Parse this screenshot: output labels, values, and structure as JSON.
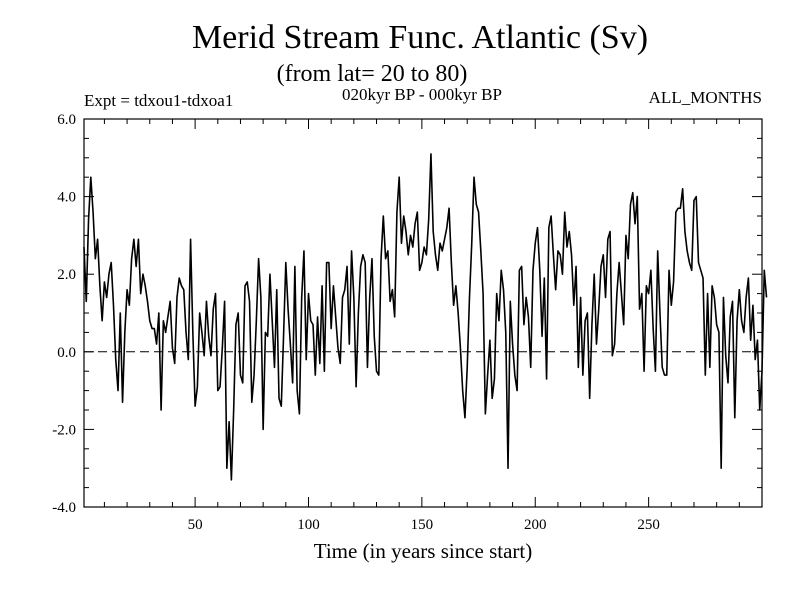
{
  "chart_data": {
    "type": "line",
    "title": "Merid Stream Func. Atlantic (Sv)",
    "subtitle": "(from lat= 20 to 80)",
    "experiment_label": "Expt = tdxou1-tdxoa1",
    "period_label": "020kyr BP - 000kyr BP",
    "months_label": "ALL_MONTHS",
    "xlabel": "Time (in years since start)",
    "ylabel": "",
    "xlim": [
      1,
      300
    ],
    "ylim": [
      -4.0,
      6.0
    ],
    "xticks": [
      50,
      100,
      150,
      200,
      250
    ],
    "xtick_labels": [
      "50",
      "100",
      "150",
      "200",
      "250"
    ],
    "yticks": [
      -4,
      -2,
      0,
      2,
      4,
      6
    ],
    "ytick_labels": [
      "-4.0",
      "-2.0",
      "0.0",
      "2.0",
      "4.0",
      "6.0"
    ],
    "reference_line": {
      "y": 0.0,
      "style": "dashed"
    },
    "series": [
      {
        "name": "Merid Stream Func.",
        "x_start": 1,
        "x_step": 1,
        "values": [
          2.7,
          1.3,
          3.4,
          4.5,
          3.6,
          2.4,
          2.9,
          1.7,
          0.8,
          1.8,
          1.4,
          2.0,
          2.3,
          1.2,
          -0.2,
          -1.0,
          1.0,
          -1.3,
          0.5,
          1.6,
          1.2,
          2.4,
          2.9,
          2.2,
          2.9,
          1.5,
          2.0,
          1.7,
          1.3,
          0.8,
          0.6,
          0.6,
          0.2,
          1.0,
          -1.5,
          0.8,
          0.5,
          0.9,
          1.3,
          0.1,
          -0.3,
          1.4,
          1.9,
          1.7,
          1.6,
          0.5,
          -0.2,
          2.9,
          0.5,
          -1.4,
          -0.9,
          1.0,
          0.5,
          -0.1,
          1.3,
          0.4,
          -0.1,
          1.1,
          1.5,
          -1.0,
          -0.9,
          0.1,
          1.3,
          -3.0,
          -1.8,
          -3.3,
          -1.5,
          0.7,
          1.0,
          -0.6,
          -0.8,
          1.7,
          1.8,
          1.3,
          -1.3,
          -0.6,
          0.8,
          2.4,
          1.4,
          -2.0,
          0.5,
          0.4,
          2.0,
          0.8,
          -0.4,
          1.6,
          -1.2,
          -1.4,
          0.4,
          2.3,
          1.1,
          0.2,
          -0.8,
          2.2,
          -1.0,
          -1.6,
          1.4,
          2.6,
          -0.2,
          1.5,
          0.8,
          0.7,
          -0.6,
          0.9,
          -0.3,
          1.7,
          -0.5,
          2.3,
          2.3,
          0.6,
          1.7,
          0.9,
          0.1,
          -0.3,
          1.4,
          1.6,
          2.2,
          0.2,
          2.6,
          1.4,
          -0.9,
          1.0,
          2.2,
          2.5,
          2.3,
          -0.4,
          1.4,
          2.4,
          0.4,
          -0.5,
          -0.6,
          2.4,
          3.5,
          2.4,
          2.6,
          1.3,
          1.6,
          0.9,
          3.6,
          4.5,
          2.8,
          3.5,
          3.1,
          2.5,
          3.0,
          2.7,
          3.3,
          3.6,
          2.1,
          2.3,
          2.7,
          2.5,
          3.4,
          5.1,
          3.1,
          2.5,
          2.1,
          2.8,
          2.6,
          2.9,
          3.2,
          3.7,
          2.3,
          1.2,
          1.7,
          1.0,
          0.1,
          -1.0,
          -1.7,
          -0.4,
          1.4,
          2.8,
          4.5,
          3.8,
          3.6,
          2.6,
          1.5,
          -1.6,
          -0.6,
          0.3,
          -1.2,
          -0.7,
          1.5,
          0.8,
          2.1,
          1.6,
          0.5,
          -3.0,
          1.3,
          0.2,
          -0.6,
          -1.0,
          2.1,
          2.2,
          0.7,
          1.4,
          0.9,
          -0.4,
          2.1,
          2.8,
          3.2,
          2.1,
          0.4,
          1.9,
          -0.7,
          3.2,
          3.5,
          2.5,
          1.6,
          2.6,
          2.5,
          2.0,
          3.6,
          2.7,
          3.1,
          2.5,
          1.2,
          2.2,
          -0.4,
          1.4,
          -0.6,
          0.8,
          1.0,
          -1.2,
          0.7,
          2.0,
          0.2,
          1.1,
          2.2,
          2.5,
          1.4,
          2.9,
          3.1,
          -0.1,
          0.2,
          1.5,
          2.3,
          1.5,
          0.7,
          3.0,
          2.4,
          3.8,
          4.1,
          3.3,
          4.0,
          1.1,
          1.5,
          -0.5,
          1.7,
          1.5,
          2.1,
          0.6,
          -0.5,
          2.6,
          1.0,
          -0.4,
          -0.6,
          -0.6,
          2.1,
          1.2,
          1.8,
          3.6,
          3.7,
          3.7,
          4.2,
          3.1,
          2.6,
          2.3,
          2.1,
          3.9,
          4.0,
          2.3,
          2.1,
          1.9,
          -0.6,
          1.5,
          -0.4,
          1.7,
          1.4,
          0.7,
          0.5,
          -3.0,
          1.4,
          -0.1,
          -0.8,
          0.9,
          1.3,
          -1.7,
          0.8,
          1.6,
          0.8,
          0.5,
          1.4,
          1.9,
          0.3,
          1.2,
          -0.2,
          0.3,
          -1.5,
          -0.5,
          2.1,
          1.4
        ]
      }
    ]
  }
}
